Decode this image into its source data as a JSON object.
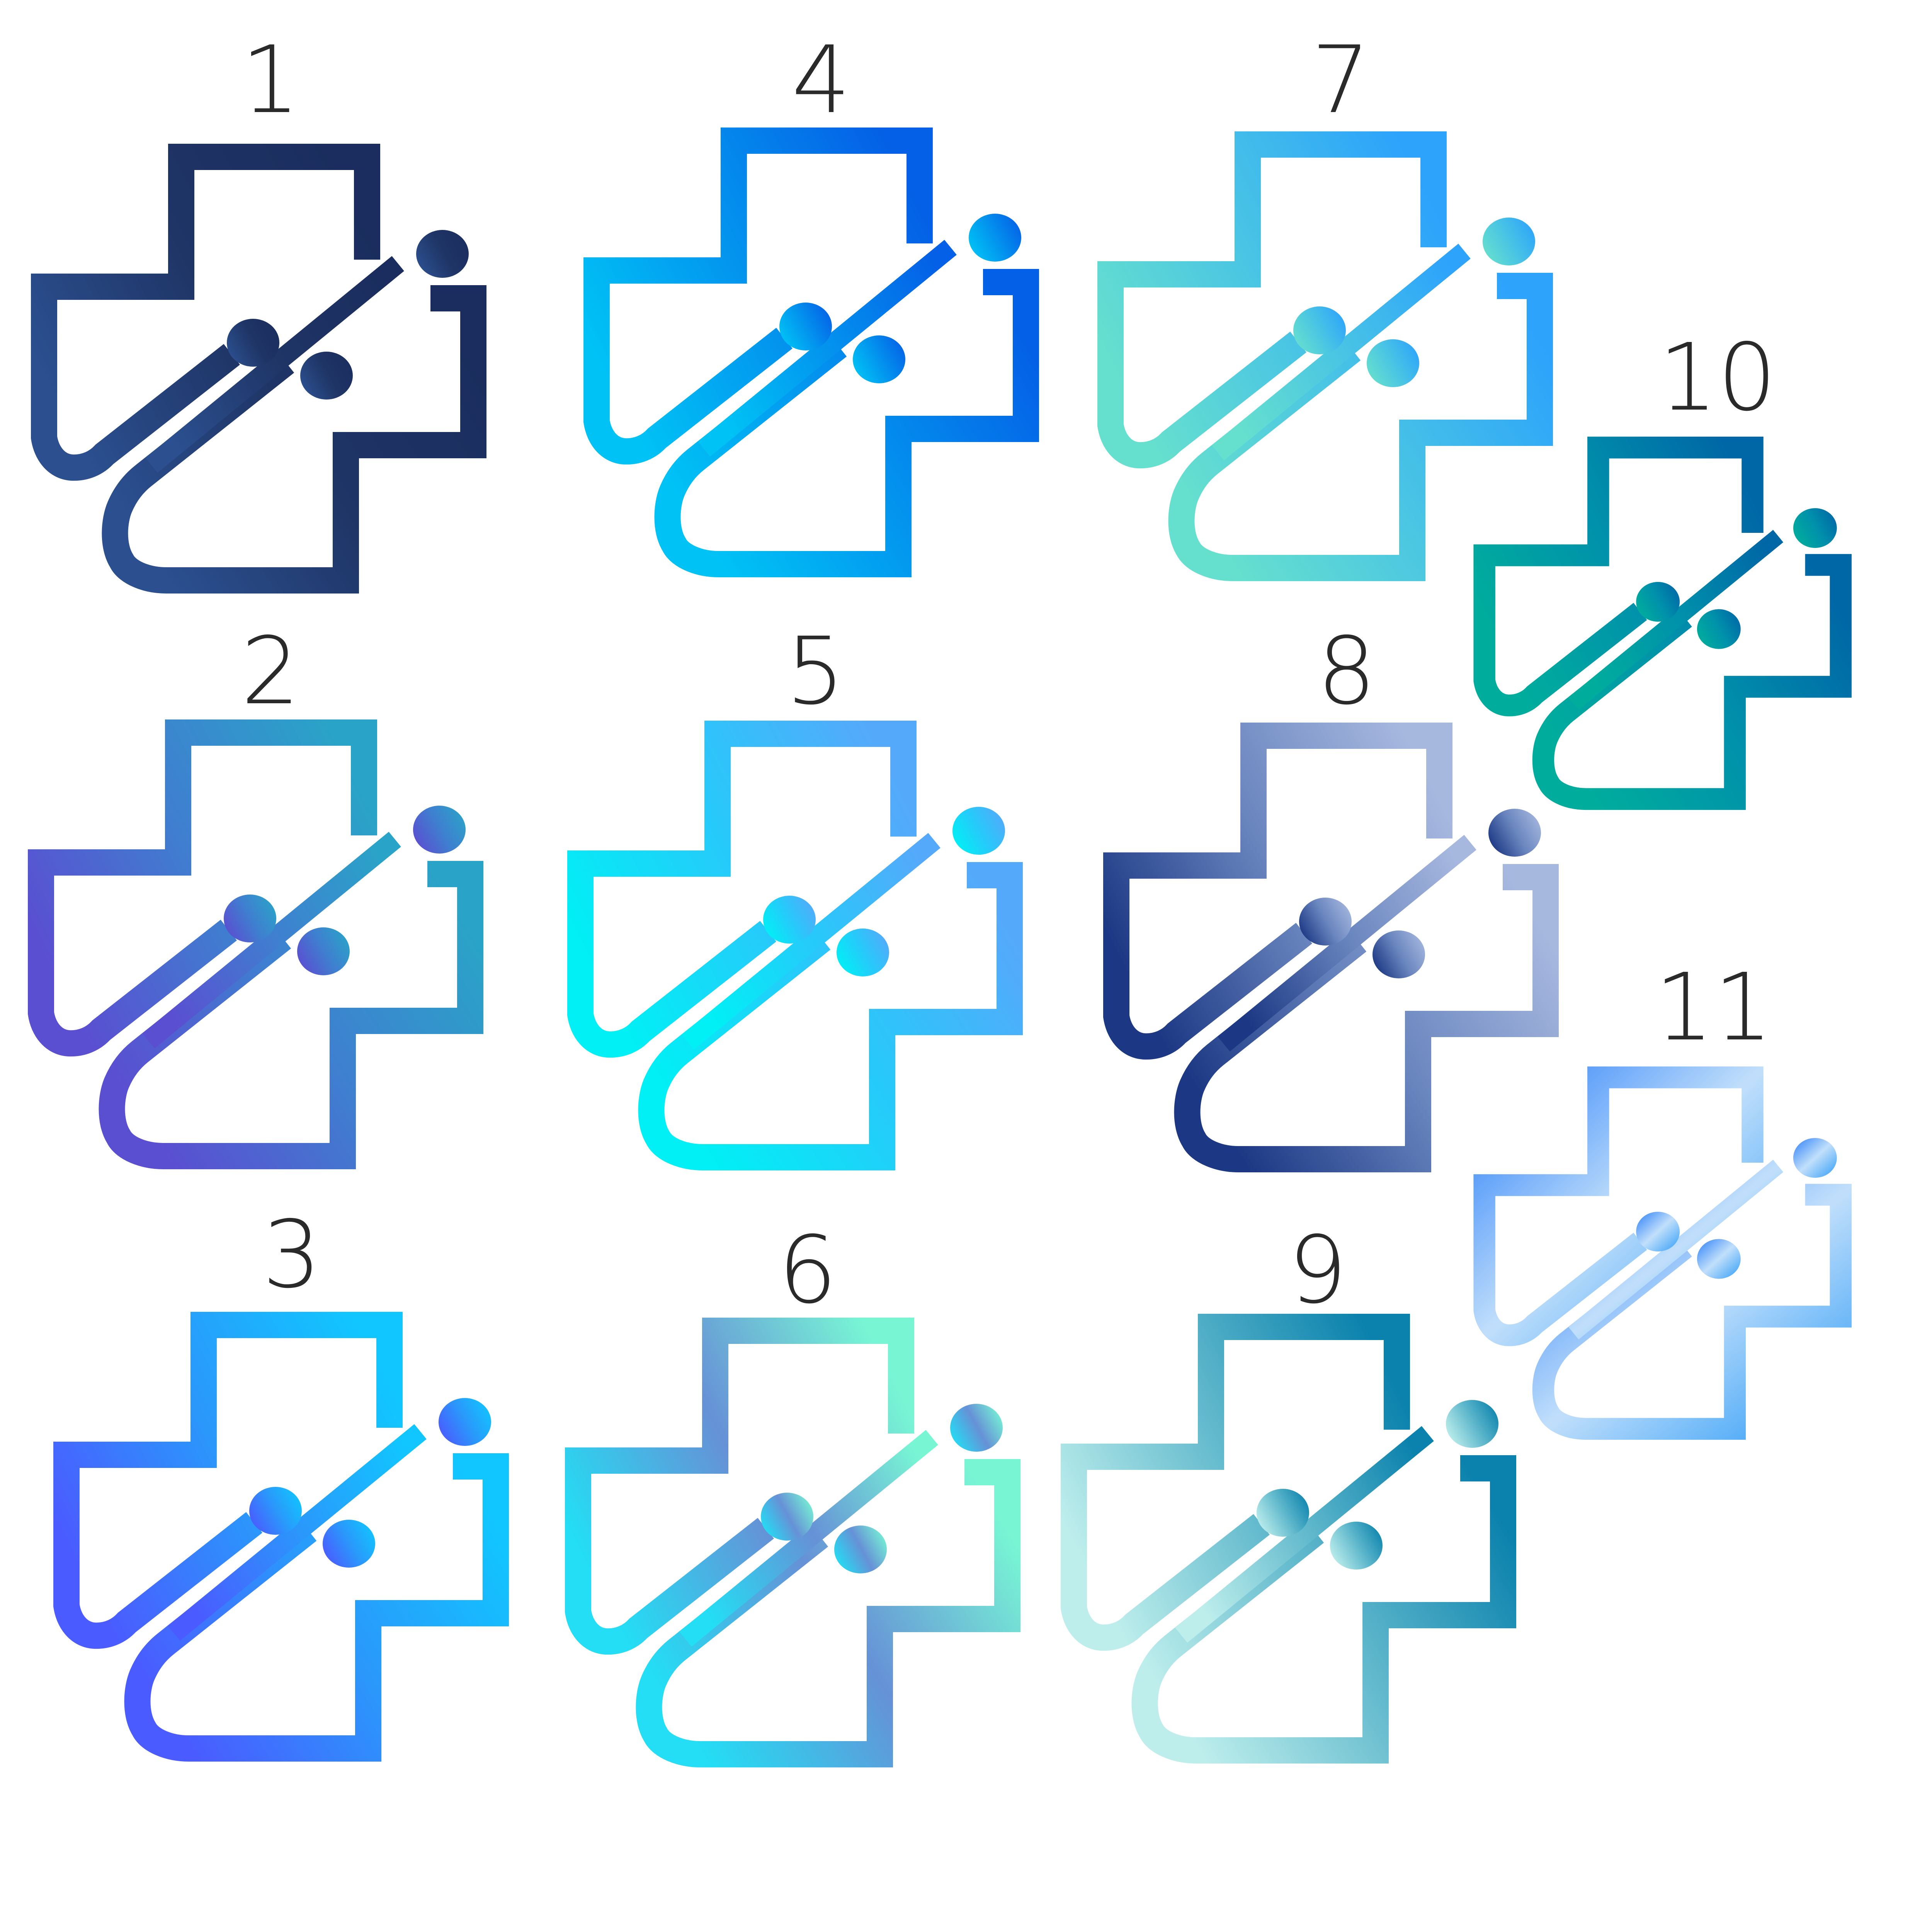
{
  "sheet": {
    "background": "#ffffff",
    "number_color": "#2a2a2a"
  },
  "logo": {
    "icon": "medical-cross-stethoscope-icon"
  },
  "variants": [
    {
      "label": "1",
      "colors": [
        "#2b4f8f",
        "#1f3566",
        "#1a2d5e"
      ]
    },
    {
      "label": "2",
      "colors": [
        "#5a4fd1",
        "#3f7fd0",
        "#2aa3c8"
      ]
    },
    {
      "label": "3",
      "colors": [
        "#4a5cff",
        "#2a98fb",
        "#11c6ff"
      ]
    },
    {
      "label": "4",
      "colors": [
        "#00c2f5",
        "#0391ee",
        "#0460e6"
      ]
    },
    {
      "label": "5",
      "colors": [
        "#00f0f5",
        "#27c9fa",
        "#55a9fb"
      ]
    },
    {
      "label": "6",
      "colors": [
        "#23def4",
        "#6691d7",
        "#78f6d4"
      ]
    },
    {
      "label": "7",
      "colors": [
        "#65dfce",
        "#48c3e5",
        "#2da3fb"
      ]
    },
    {
      "label": "8",
      "colors": [
        "#1c3884",
        "#6a86bf",
        "#a7b8df"
      ]
    },
    {
      "label": "9",
      "colors": [
        "#bdeeec",
        "#60b8cc",
        "#0b82ad"
      ]
    },
    {
      "label": "10",
      "colors": [
        "#00ad9c",
        "#0091ab",
        "#0067a6"
      ]
    },
    {
      "label": "11",
      "colors": [
        "#2b7ff8",
        "#c1dffb",
        "#2f9cf6"
      ]
    }
  ]
}
